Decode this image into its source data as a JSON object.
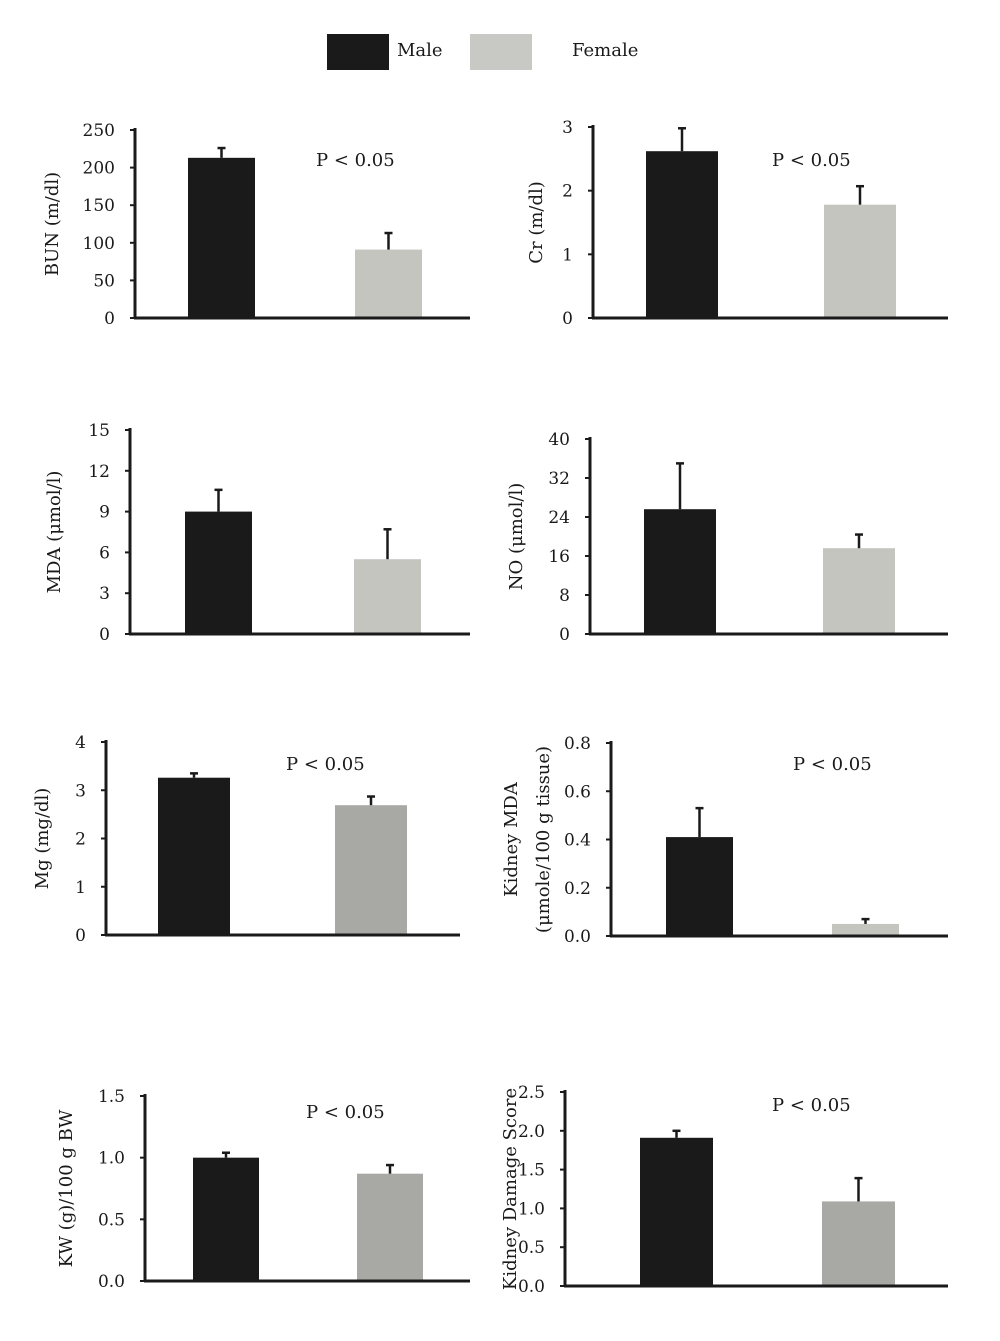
{
  "legend": {
    "items": [
      {
        "name": "Male",
        "color": "#1a1a1a"
      },
      {
        "name": "Female",
        "color": "#c8c8c4"
      }
    ]
  },
  "chart_data": [
    {
      "type": "bar",
      "categories": [
        "Male",
        "Female"
      ],
      "values": [
        213,
        91
      ],
      "errors": [
        13,
        22
      ],
      "colors": [
        "#1a1a1a",
        "#c5c5c0"
      ],
      "ylabel": "BUN (m/dl)",
      "yticks": [
        "0",
        "50",
        "100",
        "150",
        "200",
        "250"
      ],
      "ylim": [
        0,
        250
      ],
      "annotation": "P < 0.05"
    },
    {
      "type": "bar",
      "categories": [
        "Male",
        "Female"
      ],
      "values": [
        2.62,
        1.78
      ],
      "errors": [
        0.36,
        0.29
      ],
      "colors": [
        "#1a1a1a",
        "#c5c5c0"
      ],
      "ylabel": "Cr (m/dl)",
      "yticks": [
        "0",
        "1",
        "2",
        "3"
      ],
      "ylim": [
        0,
        3
      ],
      "annotation": "P < 0.05"
    },
    {
      "type": "bar",
      "categories": [
        "Male",
        "Female"
      ],
      "values": [
        9.0,
        5.5
      ],
      "errors": [
        1.6,
        2.2
      ],
      "colors": [
        "#1a1a1a",
        "#c5c5c0"
      ],
      "ylabel": "MDA (μmol/l)",
      "yticks": [
        "0",
        "3",
        "6",
        "9",
        "12",
        "15"
      ],
      "ylim": [
        0,
        15
      ],
      "annotation": ""
    },
    {
      "type": "bar",
      "categories": [
        "Male",
        "Female"
      ],
      "values": [
        25.6,
        17.6
      ],
      "errors": [
        9.4,
        2.8
      ],
      "colors": [
        "#1a1a1a",
        "#c5c5c0"
      ],
      "ylabel": "NO (μmol/l)",
      "yticks": [
        "0",
        "8",
        "16",
        "24",
        "32",
        "40"
      ],
      "ylim": [
        0,
        40
      ],
      "annotation": ""
    },
    {
      "type": "bar",
      "categories": [
        "Male",
        "Female"
      ],
      "values": [
        3.26,
        2.69
      ],
      "errors": [
        0.09,
        0.18
      ],
      "colors": [
        "#1a1a1a",
        "#a8a8a4"
      ],
      "ylabel": "Mg (mg/dl)",
      "yticks": [
        "0",
        "1",
        "2",
        "3",
        "4"
      ],
      "ylim": [
        0,
        4
      ],
      "annotation": "P < 0.05"
    },
    {
      "type": "bar",
      "categories": [
        "Male",
        "Female"
      ],
      "values": [
        0.41,
        0.05
      ],
      "errors": [
        0.12,
        0.02
      ],
      "colors": [
        "#1a1a1a",
        "#c5c5c0"
      ],
      "ylabel": "Kidney MDA",
      "ylabel2": "(μmole/100 g tissue)",
      "yticks": [
        "0.0",
        "0.2",
        "0.4",
        "0.6",
        "0.8"
      ],
      "ylim": [
        0,
        0.8
      ],
      "annotation": "P < 0.05"
    },
    {
      "type": "bar",
      "categories": [
        "Male",
        "Female"
      ],
      "values": [
        1.0,
        0.87
      ],
      "errors": [
        0.04,
        0.07
      ],
      "colors": [
        "#1a1a1a",
        "#a8a8a4"
      ],
      "ylabel": "KW (g)/100 g BW",
      "yticks": [
        "0.0",
        "0.5",
        "1.0",
        "1.5"
      ],
      "ylim": [
        0,
        1.5
      ],
      "annotation": "P < 0.05"
    },
    {
      "type": "bar",
      "categories": [
        "Male",
        "Female"
      ],
      "values": [
        1.91,
        1.09
      ],
      "errors": [
        0.09,
        0.3
      ],
      "colors": [
        "#1a1a1a",
        "#a8a8a4"
      ],
      "ylabel": "Kidney Damage Score",
      "yticks": [
        "0.0",
        "0.5",
        "1.0",
        "1.5",
        "2.0",
        "2.5"
      ],
      "ylim": [
        0,
        2.5
      ],
      "annotation": "P < 0.05"
    }
  ]
}
